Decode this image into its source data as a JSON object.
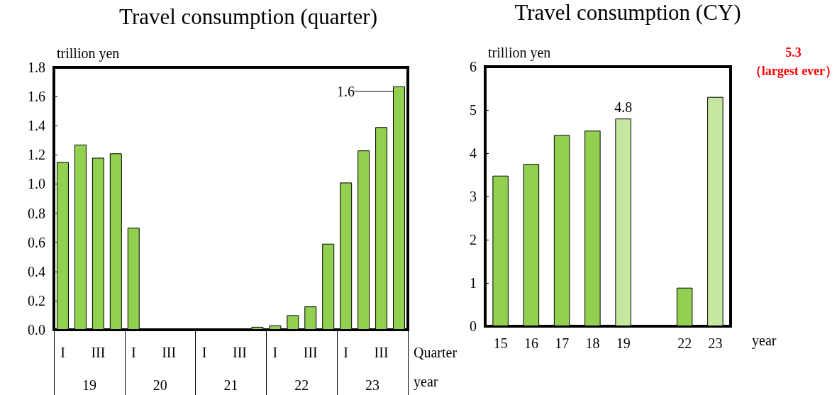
{
  "chart_data": [
    {
      "type": "bar",
      "title": "Travel consumption (quarter)",
      "ylabel": "trillion yen",
      "xlabel": "Quarter",
      "categories": [
        "I",
        null,
        "III",
        null,
        "I",
        null,
        "III",
        null,
        "I",
        null,
        "III",
        null,
        "I",
        null,
        "III",
        null,
        "I",
        null,
        "III",
        null
      ],
      "values": [
        1.15,
        1.27,
        1.18,
        1.21,
        0.7,
        0,
        0,
        0,
        0,
        0,
        0,
        0.02,
        0.03,
        0.1,
        0.16,
        0.59,
        1.01,
        1.23,
        1.39,
        1.67
      ],
      "color": "#92d050",
      "ylim": [
        0,
        1.8
      ],
      "yticks": [
        {
          "value": 0,
          "label": "0.0"
        },
        0.2,
        0.4,
        0.6,
        0.8,
        {
          "value": 1,
          "label": "1.0"
        },
        1.2,
        1.4,
        1.6,
        1.8
      ],
      "annotations": [
        "1.6",
        "19",
        "20",
        "21",
        "22",
        "23",
        "year"
      ]
    },
    {
      "type": "bar",
      "title": "Travel consumption (CY)",
      "ylabel": "trillion yen",
      "xlabel": "year",
      "categories": [
        "15",
        "16",
        "17",
        "18",
        "19",
        null,
        "22",
        "23"
      ],
      "values": [
        3.48,
        3.75,
        4.42,
        4.52,
        4.8,
        null,
        0.89,
        5.3
      ],
      "colors": [
        "#92d050",
        "#92d050",
        "#92d050",
        "#92d050",
        "#c6e79f",
        "#92d050",
        "#92d050",
        "#c6e79f"
      ],
      "value_labels": [
        null,
        null,
        null,
        null,
        "4.8",
        null,
        null,
        null
      ],
      "ylim": [
        0,
        6
      ],
      "yticks": [
        0,
        1,
        2,
        3,
        4,
        5,
        6
      ],
      "annotations": [
        "5.3\n（largest ever）"
      ]
    }
  ]
}
